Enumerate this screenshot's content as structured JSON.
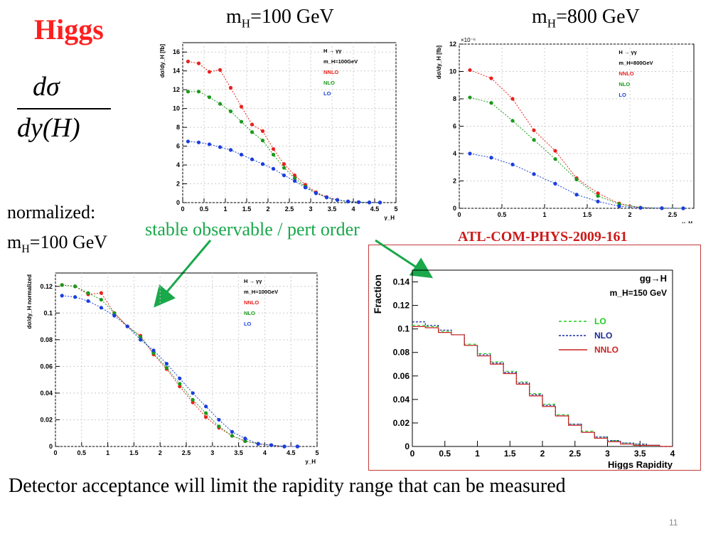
{
  "slide": {
    "title": "Higgs",
    "fraction": {
      "numerator": "dσ",
      "denominator": "dy(H)"
    },
    "normalized_label": "normalized:",
    "normalized_mass": {
      "prefix": "m",
      "sub": "H",
      "suffix": "=100 GeV"
    },
    "header_left": {
      "prefix": "m",
      "sub": "H",
      "suffix": "=100 GeV"
    },
    "header_right": {
      "prefix": "m",
      "sub": "H",
      "suffix": "=800 GeV"
    },
    "annotation": "stable observable / pert order",
    "reference": "ATL-COM-PHYS-2009-161",
    "bottom_text": "Detector acceptance will limit the rapidity range that can be measured",
    "page_number": "11",
    "colors": {
      "title": "#ff1f1f",
      "annotation": "#19a84a",
      "reference": "#cc1a1a",
      "nnlo": "#e8221e",
      "nlo": "#1a9a1a",
      "lo": "#1a3ee0"
    }
  },
  "chart_data": [
    {
      "type": "scatter",
      "ylabel": "dσ/dy_H [fb]",
      "xlabel": "y_H",
      "xlim": [
        0,
        5
      ],
      "ylim": [
        0,
        17
      ],
      "xticks": [
        "0",
        "0.5",
        "1",
        "1.5",
        "2",
        "2.5",
        "3",
        "3.5",
        "4",
        "4.5",
        "5"
      ],
      "yticks": [
        "0",
        "2",
        "4",
        "6",
        "8",
        "10",
        "12",
        "14",
        "16"
      ],
      "legend": [
        "H → γγ",
        "m_H=100GeV",
        "NNLO",
        "NLO",
        "LO"
      ],
      "x": [
        0.125,
        0.375,
        0.625,
        0.875,
        1.125,
        1.375,
        1.625,
        1.875,
        2.125,
        2.375,
        2.625,
        2.875,
        3.125,
        3.375,
        3.625,
        3.875,
        4.125,
        4.375,
        4.625
      ],
      "series": [
        {
          "name": "NNLO",
          "values": [
            15.0,
            14.8,
            13.9,
            14.1,
            12.2,
            10.2,
            8.3,
            7.6,
            5.7,
            4.1,
            2.9,
            1.9,
            1.1,
            0.6,
            0.3,
            0.12,
            0.05,
            0.02,
            0.01
          ]
        },
        {
          "name": "NLO",
          "values": [
            11.8,
            11.8,
            11.2,
            10.5,
            9.7,
            8.6,
            7.5,
            6.6,
            5.1,
            3.7,
            2.6,
            1.7,
            1.0,
            0.55,
            0.28,
            0.12,
            0.05,
            0.02,
            0.01
          ]
        },
        {
          "name": "LO",
          "values": [
            6.5,
            6.4,
            6.2,
            5.9,
            5.6,
            5.1,
            4.6,
            4.1,
            3.6,
            2.9,
            2.3,
            1.6,
            1.0,
            0.55,
            0.28,
            0.12,
            0.05,
            0.02,
            0.01
          ]
        }
      ]
    },
    {
      "type": "scatter",
      "ylabel": "dσ/dy_H [fb]",
      "xlabel": "y_H",
      "exponent_label": "×10⁻⁶",
      "xlim": [
        0,
        2.75
      ],
      "ylim": [
        0,
        12
      ],
      "xticks": [
        "0",
        "0.5",
        "1",
        "1.5",
        "2",
        "2.5"
      ],
      "yticks": [
        "0",
        "2",
        "4",
        "6",
        "8",
        "10",
        "12"
      ],
      "legend": [
        "H → γγ",
        "m_H=800GeV",
        "NNLO",
        "NLO",
        "LO"
      ],
      "x": [
        0.125,
        0.375,
        0.625,
        0.875,
        1.125,
        1.375,
        1.625,
        1.875,
        2.125,
        2.375,
        2.625
      ],
      "series": [
        {
          "name": "NNLO",
          "values": [
            10.1,
            9.5,
            8.0,
            5.7,
            4.2,
            2.2,
            1.1,
            0.35,
            0.05,
            0.01,
            0.0
          ]
        },
        {
          "name": "NLO",
          "values": [
            8.1,
            7.7,
            6.4,
            5.0,
            3.6,
            2.1,
            0.9,
            0.3,
            0.05,
            0.01,
            0.0
          ]
        },
        {
          "name": "LO",
          "values": [
            4.0,
            3.7,
            3.2,
            2.5,
            1.8,
            1.0,
            0.5,
            0.15,
            0.03,
            0.01,
            0.0
          ]
        }
      ]
    },
    {
      "type": "scatter",
      "ylabel": "dσ/dy_H normalized",
      "xlabel": "y_H",
      "xlim": [
        0,
        5
      ],
      "ylim": [
        0,
        0.13
      ],
      "xticks": [
        "0",
        "0.5",
        "1",
        "1.5",
        "2",
        "2.5",
        "3",
        "3.5",
        "4",
        "4.5",
        "5"
      ],
      "yticks": [
        "0",
        "0.02",
        "0.04",
        "0.06",
        "0.08",
        "0.1",
        "0.12"
      ],
      "legend": [
        "H → γγ",
        "m_H=100GeV",
        "NNLO",
        "NLO",
        "LO"
      ],
      "x": [
        0.125,
        0.375,
        0.625,
        0.875,
        1.125,
        1.375,
        1.625,
        1.875,
        2.125,
        2.375,
        2.625,
        2.875,
        3.125,
        3.375,
        3.625,
        3.875,
        4.125,
        4.375,
        4.625
      ],
      "series": [
        {
          "name": "NNLO",
          "values": [
            0.121,
            0.12,
            0.114,
            0.115,
            0.1,
            0.09,
            0.083,
            0.069,
            0.058,
            0.045,
            0.033,
            0.022,
            0.014,
            0.008,
            0.004,
            0.002,
            0.001,
            0.0,
            0.0
          ]
        },
        {
          "name": "NLO",
          "values": [
            0.121,
            0.12,
            0.115,
            0.11,
            0.1,
            0.09,
            0.082,
            0.07,
            0.059,
            0.047,
            0.035,
            0.025,
            0.015,
            0.008,
            0.004,
            0.002,
            0.001,
            0.0,
            0.0
          ]
        },
        {
          "name": "LO",
          "values": [
            0.113,
            0.112,
            0.109,
            0.104,
            0.098,
            0.09,
            0.08,
            0.072,
            0.062,
            0.051,
            0.04,
            0.03,
            0.02,
            0.011,
            0.006,
            0.002,
            0.001,
            0.0,
            0.0
          ]
        }
      ]
    },
    {
      "type": "line",
      "ylabel": "Fraction",
      "xlabel": "Higgs Rapidity",
      "xlim": [
        0,
        4
      ],
      "ylim": [
        0,
        0.15
      ],
      "xticks": [
        "0",
        "0.5",
        "1",
        "1.5",
        "2",
        "2.5",
        "3",
        "3.5",
        "4"
      ],
      "yticks": [
        "0",
        "0.02",
        "0.04",
        "0.06",
        "0.08",
        "0.1",
        "0.12",
        "0.14"
      ],
      "title_lines": [
        "gg→H",
        "m_H=150 GeV"
      ],
      "legend": [
        "LO",
        "NLO",
        "NNLO"
      ],
      "bin_edges": [
        0,
        0.2,
        0.4,
        0.6,
        0.8,
        1.0,
        1.2,
        1.4,
        1.6,
        1.8,
        2.0,
        2.2,
        2.4,
        2.6,
        2.8,
        3.0,
        3.2,
        3.4,
        3.6,
        3.8,
        4.0
      ],
      "series": [
        {
          "name": "LO",
          "values": [
            0.103,
            0.102,
            0.098,
            0.095,
            0.087,
            0.079,
            0.072,
            0.064,
            0.055,
            0.045,
            0.036,
            0.027,
            0.019,
            0.013,
            0.008,
            0.005,
            0.003,
            0.002,
            0.001,
            0.0
          ]
        },
        {
          "name": "NLO",
          "values": [
            0.106,
            0.103,
            0.099,
            0.095,
            0.086,
            0.078,
            0.071,
            0.063,
            0.054,
            0.044,
            0.035,
            0.026,
            0.019,
            0.012,
            0.008,
            0.005,
            0.003,
            0.002,
            0.001,
            0.0
          ]
        },
        {
          "name": "NNLO",
          "values": [
            0.102,
            0.101,
            0.097,
            0.095,
            0.086,
            0.077,
            0.07,
            0.062,
            0.053,
            0.043,
            0.034,
            0.026,
            0.018,
            0.012,
            0.007,
            0.004,
            0.002,
            0.001,
            0.001,
            0.0
          ]
        }
      ]
    }
  ]
}
